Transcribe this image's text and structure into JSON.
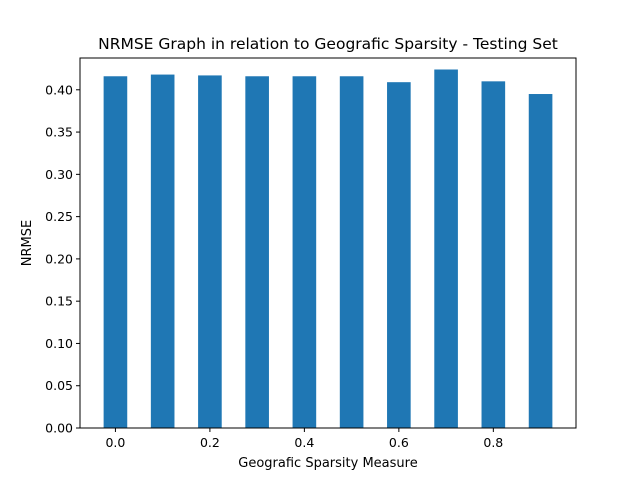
{
  "chart_data": {
    "type": "bar",
    "title": "NRMSE Graph in relation to Geografic Sparsity - Testing Set",
    "xlabel": "Geografic Sparsity Measure",
    "ylabel": "NRMSE",
    "x": [
      0.0,
      0.1,
      0.2,
      0.3,
      0.4,
      0.5,
      0.6,
      0.7,
      0.8,
      0.9
    ],
    "values": [
      0.416,
      0.418,
      0.417,
      0.416,
      0.416,
      0.416,
      0.409,
      0.424,
      0.41,
      0.395
    ],
    "bar_width": 0.05,
    "xlim": [
      -0.075,
      0.975
    ],
    "ylim": [
      0.0,
      0.4376
    ],
    "xticks": [
      0.0,
      0.2,
      0.4,
      0.6,
      0.8
    ],
    "xtick_labels": [
      "0.0",
      "0.2",
      "0.4",
      "0.6",
      "0.8"
    ],
    "yticks": [
      0.0,
      0.05,
      0.1,
      0.15,
      0.2,
      0.25,
      0.3,
      0.35,
      0.4
    ],
    "ytick_labels": [
      "0.00",
      "0.05",
      "0.10",
      "0.15",
      "0.20",
      "0.25",
      "0.30",
      "0.35",
      "0.40"
    ],
    "grid": false,
    "legend": "none",
    "bar_color": "#1f77b4"
  }
}
